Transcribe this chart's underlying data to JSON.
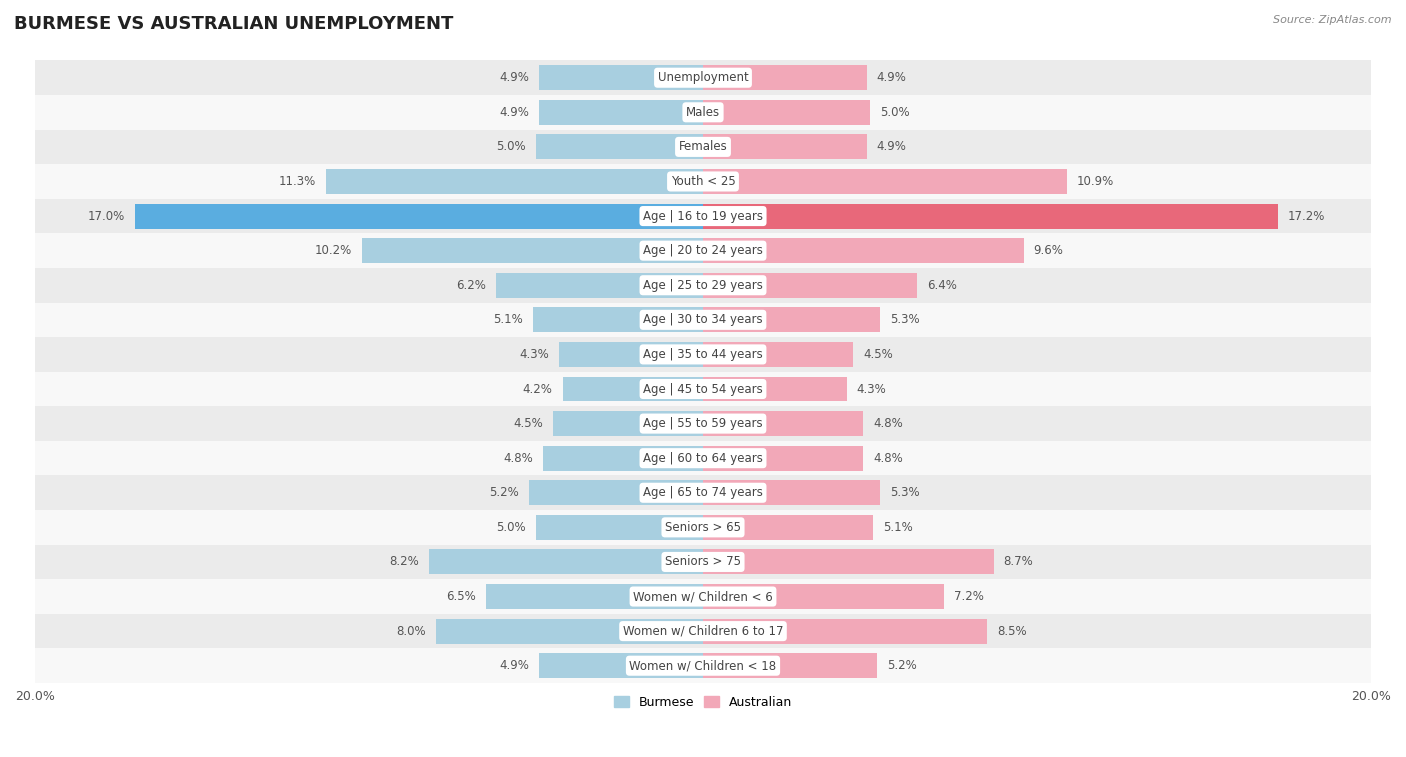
{
  "title": "BURMESE VS AUSTRALIAN UNEMPLOYMENT",
  "source": "Source: ZipAtlas.com",
  "categories": [
    "Unemployment",
    "Males",
    "Females",
    "Youth < 25",
    "Age | 16 to 19 years",
    "Age | 20 to 24 years",
    "Age | 25 to 29 years",
    "Age | 30 to 34 years",
    "Age | 35 to 44 years",
    "Age | 45 to 54 years",
    "Age | 55 to 59 years",
    "Age | 60 to 64 years",
    "Age | 65 to 74 years",
    "Seniors > 65",
    "Seniors > 75",
    "Women w/ Children < 6",
    "Women w/ Children 6 to 17",
    "Women w/ Children < 18"
  ],
  "burmese": [
    4.9,
    4.9,
    5.0,
    11.3,
    17.0,
    10.2,
    6.2,
    5.1,
    4.3,
    4.2,
    4.5,
    4.8,
    5.2,
    5.0,
    8.2,
    6.5,
    8.0,
    4.9
  ],
  "australian": [
    4.9,
    5.0,
    4.9,
    10.9,
    17.2,
    9.6,
    6.4,
    5.3,
    4.5,
    4.3,
    4.8,
    4.8,
    5.3,
    5.1,
    8.7,
    7.2,
    8.5,
    5.2
  ],
  "burmese_color": "#a8cfe0",
  "australian_color": "#f2a8b8",
  "highlight_burmese_color": "#5aade0",
  "highlight_australian_color": "#e8687a",
  "row_bg_odd": "#ebebeb",
  "row_bg_even": "#f8f8f8",
  "x_max": 20.0,
  "legend_burmese": "Burmese",
  "legend_australian": "Australian"
}
